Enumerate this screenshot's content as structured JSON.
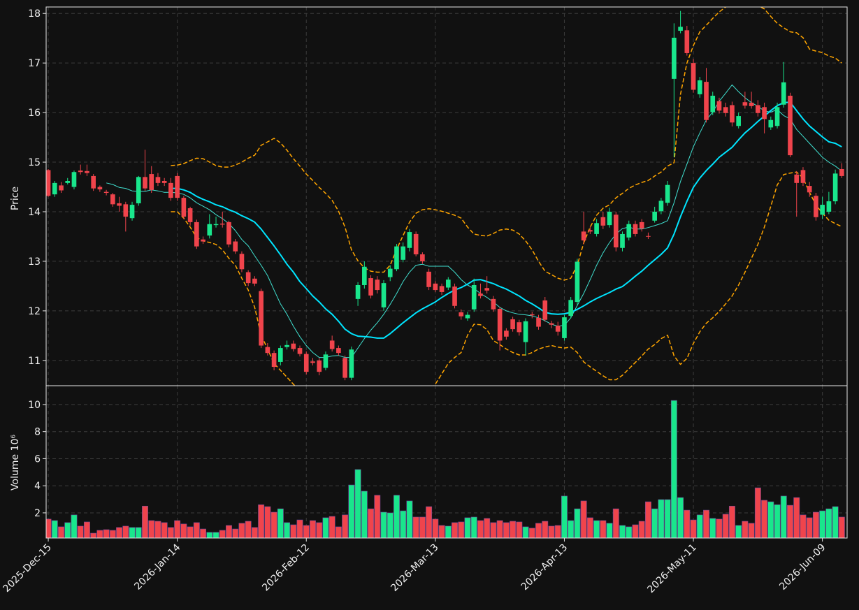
{
  "chart_data": {
    "type": "candlestick",
    "y_label": "Price",
    "y2_label": "Volume  10⁶",
    "categories": [
      "2025-Dec-15",
      null,
      null,
      null,
      null,
      null,
      null,
      null,
      null,
      null,
      null,
      null,
      null,
      null,
      null,
      null,
      null,
      null,
      null,
      null,
      "2026-Jan-14",
      null,
      null,
      null,
      null,
      null,
      null,
      null,
      null,
      null,
      null,
      null,
      null,
      null,
      null,
      null,
      null,
      null,
      null,
      null,
      "2026-Feb-12",
      null,
      null,
      null,
      null,
      null,
      null,
      null,
      null,
      null,
      null,
      null,
      null,
      null,
      null,
      null,
      null,
      null,
      null,
      null,
      "2026-Mar-13",
      null,
      null,
      null,
      null,
      null,
      null,
      null,
      null,
      null,
      null,
      null,
      null,
      null,
      null,
      null,
      null,
      null,
      null,
      null,
      "2026-Apr-13",
      null,
      null,
      null,
      null,
      null,
      null,
      null,
      null,
      null,
      null,
      null,
      null,
      null,
      null,
      null,
      null,
      null,
      null,
      null,
      "2026-May-11",
      null,
      null,
      null,
      null,
      null,
      null,
      null,
      null,
      null,
      null,
      null,
      null,
      null,
      null,
      null,
      null,
      null,
      null,
      null,
      "2026-Jun-09",
      null,
      null,
      null
    ],
    "open": [
      14.84,
      14.35,
      14.53,
      14.58,
      14.5,
      14.83,
      14.82,
      14.72,
      14.5,
      14.4,
      14.35,
      14.17,
      14.15,
      13.87,
      14.17,
      14.7,
      14.76,
      14.7,
      14.62,
      14.58,
      14.72,
      14.28,
      14.07,
      13.79,
      13.44,
      13.52,
      13.73,
      13.76,
      13.79,
      13.4,
      13.15,
      12.78,
      12.65,
      12.4,
      11.27,
      11.15,
      10.97,
      11.27,
      11.34,
      11.25,
      11.13,
      10.98,
      11.0,
      10.85,
      11.4,
      11.25,
      11.05,
      10.65,
      12.24,
      12.52,
      12.66,
      12.63,
      12.07,
      12.68,
      12.84,
      13.03,
      13.27,
      13.55,
      13.14,
      12.79,
      12.55,
      12.5,
      12.47,
      12.49,
      11.97,
      11.85,
      12.03,
      12.35,
      12.46,
      12.24,
      12.04,
      11.6,
      11.83,
      11.77,
      11.37,
      11.93,
      11.86,
      12.21,
      11.75,
      11.7,
      11.45,
      11.9,
      12.18,
      13.6,
      13.63,
      13.55,
      13.89,
      13.73,
      13.94,
      13.27,
      13.48,
      13.75,
      13.79,
      13.51,
      13.82,
      14.01,
      14.18,
      16.68,
      17.65,
      17.66,
      17.0,
      16.37,
      16.62,
      16.01,
      16.23,
      16.11,
      16.15,
      15.73,
      16.21,
      16.2,
      16.15,
      16.11,
      15.7,
      15.73,
      16.16,
      16.34,
      14.75,
      14.84,
      14.52,
      14.32,
      13.94,
      14.0,
      14.21,
      14.86
    ],
    "high": [
      14.86,
      14.62,
      14.6,
      14.68,
      14.83,
      14.95,
      14.95,
      14.76,
      14.53,
      14.44,
      14.38,
      14.3,
      14.2,
      14.2,
      14.72,
      15.25,
      14.92,
      14.78,
      14.68,
      14.68,
      14.78,
      14.32,
      14.1,
      13.84,
      13.5,
      13.95,
      13.9,
      14.0,
      13.82,
      13.45,
      13.2,
      12.82,
      12.7,
      12.45,
      11.35,
      11.2,
      11.3,
      11.4,
      11.4,
      11.3,
      11.18,
      11.05,
      11.05,
      11.18,
      11.5,
      11.3,
      11.1,
      11.28,
      12.58,
      13.0,
      12.72,
      12.7,
      12.62,
      12.92,
      13.35,
      13.38,
      13.65,
      13.6,
      13.18,
      12.85,
      12.6,
      12.55,
      12.68,
      12.55,
      12.03,
      11.98,
      12.65,
      12.55,
      12.7,
      12.3,
      12.08,
      11.65,
      11.88,
      11.82,
      11.85,
      11.98,
      11.92,
      12.28,
      11.8,
      11.78,
      11.92,
      12.28,
      13.05,
      14.0,
      13.7,
      13.85,
      14.0,
      14.08,
      14.0,
      13.6,
      13.82,
      13.82,
      13.85,
      13.58,
      14.1,
      14.28,
      14.62,
      17.8,
      18.05,
      17.75,
      17.08,
      16.72,
      16.9,
      16.42,
      16.3,
      16.2,
      16.22,
      16.0,
      16.42,
      16.42,
      16.25,
      16.2,
      15.92,
      16.2,
      17.02,
      16.4,
      14.82,
      14.9,
      14.6,
      14.38,
      14.3,
      14.4,
      14.85,
      14.98
    ],
    "low": [
      14.3,
      14.3,
      14.38,
      14.55,
      14.45,
      14.75,
      14.72,
      14.42,
      14.4,
      14.33,
      14.1,
      14.0,
      13.6,
      13.82,
      14.12,
      14.42,
      14.38,
      14.52,
      14.52,
      14.22,
      14.22,
      13.85,
      13.72,
      13.25,
      13.35,
      13.46,
      13.68,
      13.68,
      13.28,
      13.15,
      12.78,
      12.5,
      12.5,
      11.25,
      11.1,
      10.8,
      10.9,
      11.22,
      11.18,
      11.08,
      10.72,
      10.9,
      10.7,
      10.8,
      11.18,
      11.1,
      10.6,
      10.6,
      12.1,
      12.45,
      12.25,
      12.35,
      12.0,
      12.6,
      12.8,
      12.98,
      13.2,
      13.1,
      12.95,
      12.42,
      12.38,
      12.32,
      12.42,
      12.05,
      11.82,
      11.8,
      11.98,
      12.25,
      12.35,
      11.98,
      11.2,
      11.42,
      11.58,
      11.5,
      11.1,
      11.85,
      11.62,
      11.78,
      11.65,
      11.5,
      11.4,
      11.85,
      12.1,
      13.35,
      13.55,
      13.5,
      13.65,
      13.68,
      13.2,
      13.2,
      13.42,
      13.5,
      13.6,
      13.45,
      13.78,
      13.95,
      14.12,
      15.1,
      17.6,
      17.15,
      16.4,
      16.3,
      15.8,
      15.95,
      15.98,
      15.92,
      15.72,
      15.68,
      16.08,
      16.08,
      15.92,
      15.58,
      15.65,
      15.68,
      16.1,
      15.1,
      13.9,
      14.52,
      14.3,
      13.82,
      13.85,
      13.95,
      14.15,
      14.68
    ],
    "close": [
      14.32,
      14.58,
      14.43,
      14.62,
      14.8,
      14.8,
      14.78,
      14.47,
      14.45,
      14.38,
      14.15,
      14.12,
      13.9,
      14.14,
      14.7,
      14.47,
      14.44,
      14.58,
      14.58,
      14.28,
      14.28,
      13.9,
      13.79,
      13.3,
      13.4,
      13.75,
      13.75,
      13.74,
      13.34,
      13.2,
      12.84,
      12.56,
      12.55,
      11.3,
      11.15,
      10.87,
      11.25,
      11.31,
      11.23,
      11.13,
      10.77,
      10.95,
      10.77,
      11.12,
      11.23,
      11.15,
      10.65,
      11.22,
      12.52,
      12.89,
      12.31,
      12.42,
      12.56,
      12.85,
      13.3,
      13.3,
      13.59,
      13.14,
      13.0,
      12.48,
      12.42,
      12.38,
      12.63,
      12.1,
      11.89,
      11.92,
      12.52,
      12.3,
      12.41,
      12.03,
      11.4,
      11.48,
      11.63,
      11.57,
      11.79,
      11.91,
      11.68,
      11.82,
      11.72,
      11.58,
      11.87,
      12.22,
      12.99,
      13.42,
      13.6,
      13.77,
      13.72,
      14.0,
      13.28,
      13.55,
      13.75,
      13.55,
      13.66,
      13.5,
      14.0,
      14.22,
      14.54,
      17.51,
      17.73,
      17.2,
      16.46,
      16.65,
      15.85,
      16.34,
      16.04,
      15.99,
      15.8,
      15.93,
      16.14,
      16.13,
      15.99,
      15.87,
      15.85,
      16.11,
      16.61,
      15.14,
      14.58,
      14.58,
      14.39,
      13.89,
      14.14,
      14.21,
      14.77,
      14.72
    ],
    "volume": [
      1.54,
      1.43,
      0.97,
      1.28,
      1.85,
      1.02,
      1.33,
      0.5,
      0.71,
      0.76,
      0.71,
      0.92,
      1.02,
      0.92,
      0.92,
      2.5,
      1.43,
      1.38,
      1.28,
      0.92,
      1.43,
      1.18,
      0.97,
      1.28,
      0.81,
      0.56,
      0.56,
      0.71,
      1.07,
      0.81,
      1.23,
      1.38,
      0.92,
      2.6,
      2.46,
      2.05,
      2.3,
      1.28,
      1.12,
      1.48,
      1.07,
      1.43,
      1.28,
      1.64,
      1.74,
      0.97,
      1.85,
      4.06,
      5.2,
      3.6,
      2.3,
      3.3,
      2.05,
      2.0,
      3.3,
      2.15,
      2.88,
      1.69,
      1.69,
      2.46,
      1.54,
      1.07,
      1.02,
      1.28,
      1.33,
      1.64,
      1.69,
      1.43,
      1.59,
      1.28,
      1.43,
      1.28,
      1.38,
      1.33,
      0.97,
      0.87,
      1.23,
      1.38,
      1.02,
      1.07,
      3.24,
      1.43,
      2.3,
      2.88,
      1.64,
      1.43,
      1.43,
      1.23,
      2.3,
      1.07,
      0.97,
      1.12,
      1.38,
      2.82,
      2.3,
      2.98,
      2.98,
      10.3,
      3.13,
      2.2,
      1.48,
      1.85,
      2.2,
      1.59,
      1.54,
      1.9,
      2.5,
      1.07,
      1.38,
      1.23,
      3.85,
      2.93,
      2.82,
      2.6,
      3.24,
      2.56,
      3.13,
      1.85,
      1.64,
      2.05,
      2.15,
      2.3,
      2.46,
      1.69
    ],
    "up_color": "#19e68c",
    "down_color": "#f0444c",
    "ylim": [
      10.49,
      18.13
    ],
    "yticks": [
      11,
      12,
      13,
      14,
      15,
      16,
      17,
      18
    ],
    "y2lim": [
      0.14,
      11.39
    ],
    "y2ticks": [
      2,
      4,
      6,
      8,
      10
    ],
    "grid": true,
    "lines": [
      {
        "color": "#40e0d0",
        "width": 1,
        "dash": false,
        "values": [
          null,
          null,
          null,
          null,
          null,
          null,
          null,
          null,
          null,
          14.58,
          14.55,
          14.49,
          14.47,
          14.42,
          14.41,
          14.41,
          14.44,
          14.42,
          14.39,
          14.39,
          14.38,
          14.35,
          14.28,
          14.18,
          14.11,
          14.04,
          13.94,
          13.86,
          13.76,
          13.62,
          13.44,
          13.31,
          13.11,
          12.92,
          12.71,
          12.42,
          12.14,
          11.93,
          11.69,
          11.48,
          11.3,
          11.16,
          11.06,
          11.06,
          11.09,
          11.1,
          11.06,
          11.06,
          11.25,
          11.44,
          11.61,
          11.76,
          11.93,
          12.13,
          12.35,
          12.59,
          12.78,
          12.92,
          12.94,
          12.9,
          12.9,
          12.9,
          12.9,
          12.78,
          12.63,
          12.52,
          12.45,
          12.35,
          12.27,
          12.18,
          12.07,
          12.0,
          11.96,
          11.93,
          11.92,
          11.9,
          11.86,
          11.8,
          11.73,
          11.69,
          11.71,
          11.86,
          12.11,
          12.35,
          12.63,
          12.92,
          13.17,
          13.38,
          13.55,
          13.66,
          13.69,
          13.65,
          13.65,
          13.68,
          13.72,
          13.76,
          13.82,
          14.18,
          14.61,
          14.96,
          15.31,
          15.59,
          15.85,
          16.01,
          16.23,
          16.39,
          16.56,
          16.42,
          16.3,
          16.2,
          16.13,
          16.03,
          16.01,
          16.06,
          15.94,
          15.87,
          15.66,
          15.52,
          15.38,
          15.24,
          15.1,
          15.0,
          14.92,
          14.82
        ]
      },
      {
        "color": "#00e5ff",
        "width": 2,
        "dash": false,
        "values": [
          null,
          null,
          null,
          null,
          null,
          null,
          null,
          null,
          null,
          null,
          null,
          null,
          null,
          null,
          null,
          null,
          null,
          null,
          null,
          14.47,
          14.47,
          14.44,
          14.39,
          14.31,
          14.25,
          14.2,
          14.14,
          14.1,
          14.04,
          13.99,
          13.92,
          13.86,
          13.79,
          13.65,
          13.48,
          13.31,
          13.13,
          12.94,
          12.78,
          12.59,
          12.45,
          12.3,
          12.18,
          12.04,
          11.93,
          11.79,
          11.63,
          11.54,
          11.49,
          11.48,
          11.47,
          11.45,
          11.45,
          11.54,
          11.65,
          11.76,
          11.86,
          11.96,
          12.04,
          12.11,
          12.18,
          12.27,
          12.35,
          12.42,
          12.47,
          12.54,
          12.62,
          12.63,
          12.59,
          12.55,
          12.49,
          12.44,
          12.37,
          12.3,
          12.21,
          12.14,
          12.06,
          11.97,
          11.94,
          11.93,
          11.94,
          11.97,
          12.03,
          12.1,
          12.18,
          12.25,
          12.31,
          12.37,
          12.44,
          12.49,
          12.59,
          12.7,
          12.8,
          12.92,
          13.03,
          13.14,
          13.27,
          13.55,
          13.9,
          14.21,
          14.49,
          14.68,
          14.83,
          14.96,
          15.1,
          15.2,
          15.3,
          15.45,
          15.59,
          15.7,
          15.82,
          15.93,
          16.04,
          16.14,
          16.2,
          16.21,
          16.04,
          15.87,
          15.73,
          15.62,
          15.51,
          15.41,
          15.38,
          15.31
        ]
      },
      {
        "color": "#ffa500",
        "width": 1.5,
        "dash": true,
        "values": [
          null,
          null,
          null,
          null,
          null,
          null,
          null,
          null,
          null,
          null,
          null,
          null,
          null,
          null,
          null,
          null,
          null,
          null,
          null,
          14.93,
          14.94,
          14.97,
          15.03,
          15.08,
          15.07,
          15.0,
          14.93,
          14.9,
          14.9,
          14.94,
          15.0,
          15.08,
          15.14,
          15.34,
          15.41,
          15.48,
          15.39,
          15.24,
          15.07,
          14.92,
          14.76,
          14.63,
          14.49,
          14.37,
          14.23,
          14.01,
          13.69,
          13.23,
          13.01,
          12.87,
          12.8,
          12.78,
          12.78,
          12.92,
          13.24,
          13.52,
          13.79,
          13.97,
          14.04,
          14.06,
          14.04,
          14.01,
          13.97,
          13.93,
          13.87,
          13.69,
          13.55,
          13.52,
          13.51,
          13.56,
          13.63,
          13.65,
          13.63,
          13.55,
          13.41,
          13.23,
          13.0,
          12.8,
          12.73,
          12.66,
          12.62,
          12.66,
          12.92,
          13.37,
          13.69,
          13.93,
          14.07,
          14.14,
          14.28,
          14.37,
          14.47,
          14.54,
          14.59,
          14.63,
          14.72,
          14.8,
          14.92,
          14.99,
          16.37,
          17.0,
          17.35,
          17.63,
          17.76,
          17.9,
          18.03,
          18.13,
          18.16,
          18.18,
          18.2,
          18.2,
          18.16,
          18.09,
          17.94,
          17.8,
          17.71,
          17.63,
          17.61,
          17.51,
          17.28,
          17.24,
          17.21,
          17.14,
          17.1,
          17.0
        ]
      },
      {
        "color": "#ffa500",
        "width": 1.5,
        "dash": true,
        "values": [
          null,
          null,
          null,
          null,
          null,
          null,
          null,
          null,
          null,
          null,
          null,
          null,
          null,
          null,
          null,
          null,
          null,
          null,
          null,
          14.0,
          14.0,
          13.87,
          13.69,
          13.48,
          13.41,
          13.38,
          13.34,
          13.23,
          13.06,
          12.92,
          12.66,
          12.42,
          12.07,
          11.51,
          11.23,
          10.94,
          10.8,
          10.66,
          10.52,
          10.38,
          10.24,
          10.17,
          10.1,
          10.06,
          10.03,
          10.03,
          10.06,
          10.1,
          10.1,
          10.03,
          9.96,
          9.89,
          9.82,
          9.82,
          9.85,
          9.96,
          10.1,
          10.17,
          10.24,
          10.38,
          10.52,
          10.73,
          10.94,
          11.06,
          11.16,
          11.51,
          11.73,
          11.72,
          11.62,
          11.4,
          11.32,
          11.23,
          11.16,
          11.11,
          11.11,
          11.16,
          11.23,
          11.27,
          11.3,
          11.27,
          11.25,
          11.27,
          11.16,
          10.97,
          10.87,
          10.78,
          10.69,
          10.61,
          10.61,
          10.7,
          10.83,
          10.96,
          11.09,
          11.23,
          11.32,
          11.44,
          11.51,
          11.09,
          10.92,
          11.04,
          11.34,
          11.58,
          11.75,
          11.86,
          11.99,
          12.14,
          12.3,
          12.52,
          12.78,
          13.06,
          13.34,
          13.69,
          14.11,
          14.54,
          14.75,
          14.78,
          14.8,
          14.68,
          14.39,
          14.14,
          13.97,
          13.83,
          13.76,
          13.7
        ]
      }
    ]
  }
}
